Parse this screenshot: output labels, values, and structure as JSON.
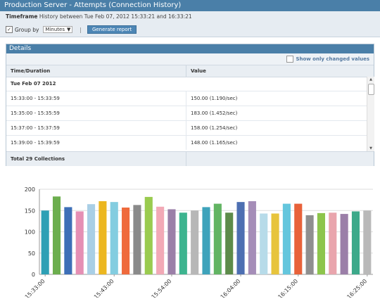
{
  "window": {
    "title": "Production Server - Attempts (Connection History)"
  },
  "timeframe": {
    "label": "Timeframe",
    "value": "History between Tue Feb 07, 2012 15:33:21 and 16:33:21"
  },
  "controls": {
    "group_by_label": "Group by",
    "group_by_checked": true,
    "group_by_value": "Minutes",
    "separator": "|",
    "generate_label": "Generate report"
  },
  "details": {
    "title": "Details",
    "show_changed_label": "Show only changed values",
    "columns": [
      "Time/Duration",
      "Value"
    ],
    "group": "Tue Feb 07 2012",
    "rows": [
      {
        "time": "15:33:00 - 15:33:59",
        "value": "150.00 (1.190/sec)"
      },
      {
        "time": "15:35:00 - 15:35:59",
        "value": "183.00 (1.452/sec)"
      },
      {
        "time": "15:37:00 - 15:37:59",
        "value": "158.00 (1.254/sec)"
      },
      {
        "time": "15:39:00 - 15:39:59",
        "value": "148.00 (1.165/sec)"
      }
    ],
    "total": "Total 29 Collections"
  },
  "chart_data": {
    "type": "bar",
    "yticks": [
      0,
      50,
      100,
      150,
      200
    ],
    "ylim": [
      0,
      200
    ],
    "grid": true,
    "xlabels": [
      "15:33:00",
      "15:43:00",
      "15:54:00",
      "16:04:00",
      "16:15:00",
      "16:25:00"
    ],
    "values": [
      150,
      183,
      158,
      148,
      165,
      172,
      170,
      157,
      163,
      182,
      159,
      153,
      145,
      150,
      158,
      166,
      145,
      170,
      172,
      143,
      143,
      166,
      166,
      139,
      144,
      145,
      142,
      148,
      150
    ],
    "colors": [
      "#2ea0b5",
      "#6cae4e",
      "#3d6fb7",
      "#e58fb4",
      "#a9cfe6",
      "#ecb720",
      "#83cde0",
      "#ef6a3c",
      "#8a8a8a",
      "#9acb4f",
      "#f2a9b6",
      "#9b7fa8",
      "#3db48f",
      "#b7b7b7",
      "#3ea3bb",
      "#62b463",
      "#5d8b4a",
      "#4d6fb2",
      "#a58db8",
      "#b7dbe9",
      "#e7c43c",
      "#64c6dd",
      "#e8623a",
      "#8f8f8f",
      "#8dc54c",
      "#e9a5ad",
      "#9b7fa8",
      "#3ca98a",
      "#b9b9b9"
    ]
  }
}
